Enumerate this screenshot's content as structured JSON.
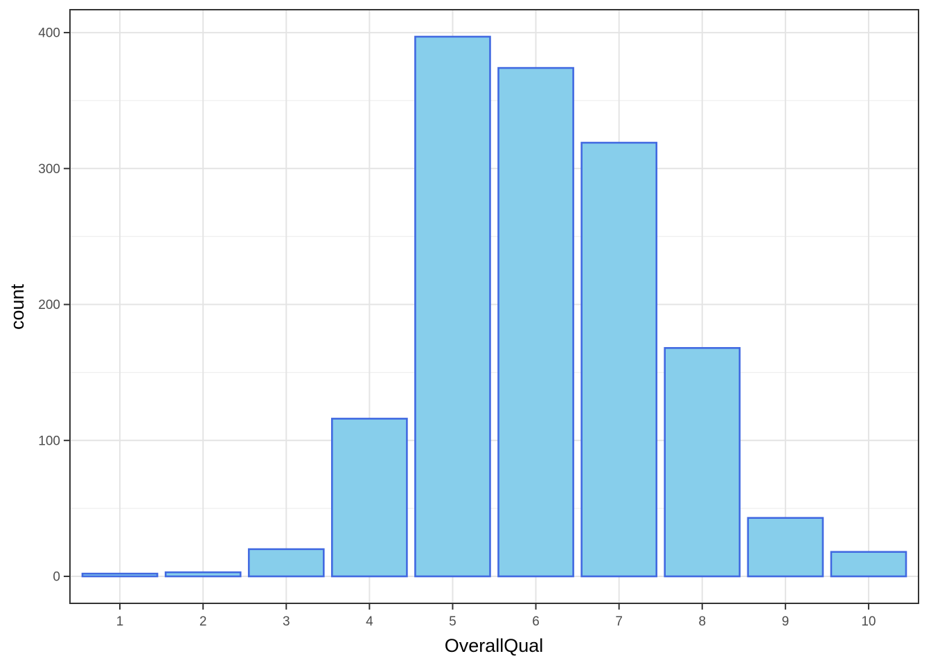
{
  "chart_data": {
    "type": "bar",
    "title": "",
    "xlabel": "OverallQual",
    "ylabel": "count",
    "categories": [
      "1",
      "2",
      "3",
      "4",
      "5",
      "6",
      "7",
      "8",
      "9",
      "10"
    ],
    "values": [
      2,
      3,
      20,
      116,
      397,
      374,
      319,
      168,
      43,
      18
    ],
    "x_tick_labels": [
      "1",
      "2",
      "3",
      "4",
      "5",
      "6",
      "7",
      "8",
      "9",
      "10"
    ],
    "y_tick_labels": [
      "0",
      "100",
      "200",
      "300",
      "400"
    ],
    "yticks": [
      0,
      100,
      200,
      300,
      400
    ],
    "yminor": [
      50,
      150,
      250,
      350
    ],
    "ylim": [
      -19.85,
      416.85
    ],
    "bar_width_fraction": 0.9,
    "x_expand": 0.6,
    "grid": "y-major+y-minor+x-major",
    "legend": "none",
    "colors": {
      "background": "#FFFFFF",
      "panel_background": "#FFFFFF",
      "bar_fill": "#87CEEB",
      "bar_stroke": "#4169E1",
      "grid_major": "#E4E4E4",
      "grid_minor": "#F0F0F0",
      "panel_border": "#333333",
      "tick_mark": "#333333",
      "tick_label": "#4D4D4D",
      "axis_title": "#000000"
    }
  }
}
